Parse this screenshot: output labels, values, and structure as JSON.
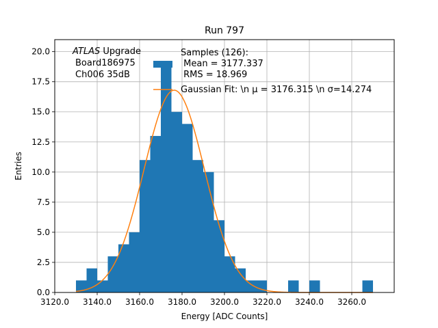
{
  "chart_data": {
    "type": "bar",
    "title": "Run 797",
    "xlabel": "Energy [ADC Counts]",
    "ylabel": "Entries",
    "xlim": [
      3120,
      3280
    ],
    "ylim": [
      0,
      21
    ],
    "grid": true,
    "xticks": [
      3120,
      3140,
      3160,
      3180,
      3200,
      3220,
      3240,
      3260
    ],
    "xtick_labels": [
      "3120.0",
      "3140.0",
      "3160.0",
      "3180.0",
      "3200.0",
      "3220.0",
      "3240.0",
      "3260.0"
    ],
    "yticks": [
      0,
      2.5,
      5,
      7.5,
      10,
      12.5,
      15,
      17.5,
      20
    ],
    "ytick_labels": [
      "0.0",
      "2.5",
      "5.0",
      "7.5",
      "10.0",
      "12.5",
      "15.0",
      "17.5",
      "20.0"
    ],
    "annotation": {
      "italic": "ATLAS",
      "rest": " Upgrade",
      "line2": "Board186975",
      "line3": "Ch006 35dB"
    },
    "legend": {
      "position": "top-right",
      "hist_label_lines": [
        "Samples (126):",
        " Mean = 3177.337",
        " RMS = 18.969"
      ],
      "fit_label": "Gaussian Fit: \\n μ = 3176.315 \\n σ=14.274"
    },
    "histogram": {
      "color": "#1f77b4",
      "bin_edges": [
        3130,
        3135,
        3140,
        3145,
        3150,
        3155,
        3160,
        3165,
        3170,
        3175,
        3180,
        3185,
        3190,
        3195,
        3200,
        3205,
        3210,
        3215,
        3220,
        3225,
        3230,
        3235,
        3240,
        3245,
        3250,
        3255,
        3260,
        3265,
        3270
      ],
      "counts": [
        1,
        2,
        1,
        3,
        4,
        5,
        11,
        13,
        19,
        15,
        14,
        11,
        10,
        6,
        3,
        2,
        1,
        1,
        0,
        0,
        1,
        0,
        1,
        0,
        0,
        0,
        0,
        1
      ]
    },
    "fit": {
      "name": "Gaussian Fit",
      "color": "#ff7f0e",
      "mu": 3176.315,
      "sigma": 14.274,
      "amplitude": 16.8,
      "x_range": [
        3130,
        3270
      ]
    }
  }
}
